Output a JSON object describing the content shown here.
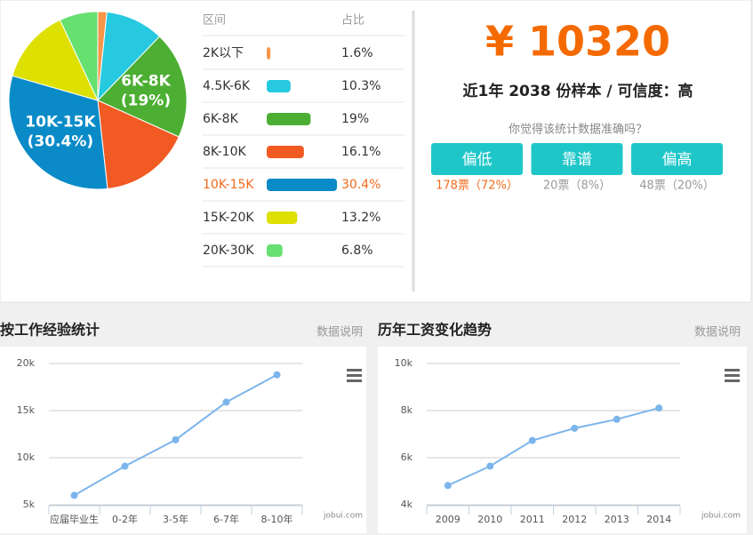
{
  "chart_data": [
    {
      "type": "pie",
      "columns": [
        "区间",
        "占比"
      ],
      "categories": [
        "2K以下",
        "4.5K-6K",
        "6K-8K",
        "8K-10K",
        "10K-15K",
        "15K-20K",
        "20K-30K"
      ],
      "values": [
        1.6,
        10.3,
        19,
        16.1,
        30.4,
        13.2,
        6.8
      ],
      "value_labels": [
        "1.6%",
        "10.3%",
        "19%",
        "16.1%",
        "30.4%",
        "13.2%",
        "6.8%"
      ],
      "slice_labels": [
        null,
        null,
        "(19%)",
        null,
        "(30.4%)",
        null,
        null
      ],
      "colors": [
        "#f7954a",
        "#26c9e0",
        "#4caf33",
        "#f15a22",
        "#0a8bc8",
        "#dde000",
        "#66e070"
      ],
      "highlight": "10K-15K",
      "highlight_color": "#f26b1d"
    },
    {
      "type": "line",
      "title": "按工作经验统计",
      "link": "数据说明",
      "credit": "jobui.com",
      "categories": [
        "应届毕业生",
        "0-2年",
        "3-5年",
        "6-7年",
        "8-10年"
      ],
      "values": [
        6000,
        9100,
        11900,
        15900,
        18800
      ],
      "color": "#7cb5ec",
      "ylim": [
        5000,
        20000
      ],
      "yticks": [
        {
          "value": 5000,
          "label": "5k"
        },
        {
          "value": 10000,
          "label": "10k"
        },
        {
          "value": 15000,
          "label": "15k"
        },
        {
          "value": 20000,
          "label": "20k"
        }
      ],
      "grid": true
    },
    {
      "type": "line",
      "title": "历年工资变化趋势",
      "link": "数据说明",
      "credit": "jobui.com",
      "categories": [
        "2009",
        "2010",
        "2011",
        "2012",
        "2013",
        "2014"
      ],
      "values": [
        4820,
        5640,
        6730,
        7250,
        7630,
        8110
      ],
      "color": "#7cb5ec",
      "ylim": [
        4000,
        10000
      ],
      "yticks": [
        {
          "value": 4000,
          "label": "4k"
        },
        {
          "value": 6000,
          "label": "6k"
        },
        {
          "value": 8000,
          "label": "8k"
        },
        {
          "value": 10000,
          "label": "10k"
        }
      ],
      "grid": true
    }
  ],
  "salary": {
    "amount": "¥ 10320",
    "summary": "近1年 2038 份样本 / 可信度：高",
    "question": "你觉得该统计数据准确吗？",
    "options": [
      {
        "label": "偏低",
        "votes": "178票（72%）"
      },
      {
        "label": "靠谱",
        "votes": "20票（8%）"
      },
      {
        "label": "偏高",
        "votes": "48票（20%）"
      }
    ]
  }
}
